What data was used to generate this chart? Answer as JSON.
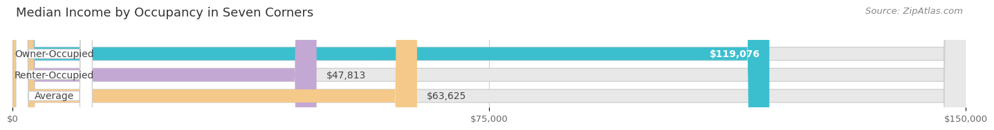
{
  "title": "Median Income by Occupancy in Seven Corners",
  "source": "Source: ZipAtlas.com",
  "categories": [
    "Owner-Occupied",
    "Renter-Occupied",
    "Average"
  ],
  "values": [
    119076,
    47813,
    63625
  ],
  "bar_colors": [
    "#3bbfcf",
    "#c4a8d4",
    "#f5c98a"
  ],
  "value_labels": [
    "$119,076",
    "$47,813",
    "$63,625"
  ],
  "value_label_colors": [
    "white",
    "black",
    "black"
  ],
  "xlim": [
    0,
    150000
  ],
  "xticks": [
    0,
    75000,
    150000
  ],
  "xticklabels": [
    "$0",
    "$75,000",
    "$150,000"
  ],
  "background_color": "#ffffff",
  "bar_background_color": "#e8e8e8",
  "title_fontsize": 13,
  "source_fontsize": 9.5,
  "label_fontsize": 10,
  "tick_fontsize": 9.5,
  "bar_height": 0.62,
  "bar_gap": 0.38
}
